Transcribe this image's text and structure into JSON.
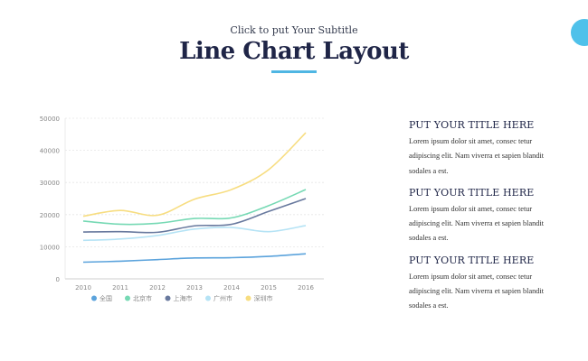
{
  "header": {
    "subtitle": "Click to put Your Subtitle",
    "title": "Line Chart Layout",
    "accent_color": "#4fb6e3"
  },
  "sections": [
    {
      "title": "PUT YOUR TITLE HERE",
      "lines": [
        "Lorem ipsum dolor sit amet, consec tetur",
        "adipiscing elit. Nam viverra et sapien blandit",
        "sodales a est."
      ]
    },
    {
      "title": "PUT YOUR TITLE HERE",
      "lines": [
        "Lorem ipsum dolor sit amet, consec tetur",
        "adipiscing elit. Nam viverra et sapien blandit",
        "sodales a est."
      ]
    },
    {
      "title": "PUT YOUR TITLE HERE",
      "lines": [
        "Lorem ipsum dolor sit amet, consec tetur",
        "adipiscing elit. Nam viverra et sapien blandit",
        "sodales a est."
      ]
    }
  ],
  "chart_data": {
    "type": "line",
    "x": [
      "2010",
      "2011",
      "2012",
      "2013",
      "2014",
      "2015",
      "2016"
    ],
    "ylim": [
      0,
      50000
    ],
    "yticks": [
      0,
      10000,
      20000,
      30000,
      40000,
      50000
    ],
    "grid": true,
    "legend_position": "bottom",
    "series": [
      {
        "name": "全国",
        "color": "#5ba3dc",
        "values": [
          5200,
          5500,
          6000,
          6500,
          6600,
          7000,
          7800
        ]
      },
      {
        "name": "北京市",
        "color": "#76d9b4",
        "values": [
          18000,
          17000,
          17300,
          18800,
          19000,
          22800,
          27800
        ]
      },
      {
        "name": "上海市",
        "color": "#68799e",
        "values": [
          14600,
          14700,
          14500,
          16500,
          17000,
          21000,
          25000
        ]
      },
      {
        "name": "广州市",
        "color": "#b5e3f5",
        "values": [
          12000,
          12400,
          13500,
          15500,
          16000,
          14700,
          16600
        ]
      },
      {
        "name": "深圳市",
        "color": "#f7dd80",
        "values": [
          19500,
          21300,
          19800,
          24800,
          27800,
          34000,
          45500
        ]
      }
    ]
  }
}
